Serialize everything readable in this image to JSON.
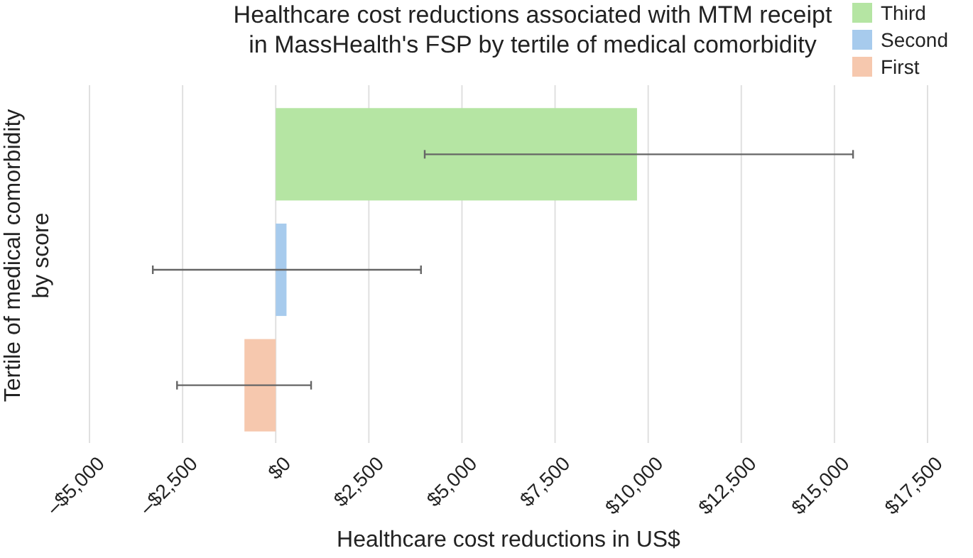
{
  "chart_data": {
    "type": "bar",
    "orientation": "horizontal",
    "title": "Healthcare cost reductions associated with MTM receipt\nin MassHealth's FSP by tertile of medical comorbidity",
    "xlabel": "Healthcare cost reductions in US$",
    "ylabel": "Tertile of medical comorbidity\nby score",
    "categories": [
      null,
      null,
      null
    ],
    "series": [
      {
        "name": "Third",
        "color": "#b5e5a3",
        "values": [
          9700,
          null,
          null
        ],
        "errors": [
          [
            4000,
            15500
          ],
          null,
          null
        ]
      },
      {
        "name": "Second",
        "color": "#a7cbed",
        "values": [
          null,
          290,
          null
        ],
        "errors": [
          null,
          [
            -3300,
            3900
          ],
          null
        ]
      },
      {
        "name": "First",
        "color": "#f6c8ae",
        "values": [
          null,
          null,
          -840
        ],
        "errors": [
          null,
          null,
          [
            -2650,
            950
          ]
        ]
      }
    ],
    "xlim": [
      -5000,
      17500
    ],
    "xticks": [
      {
        "value": -5000,
        "label": "–$5,000"
      },
      {
        "value": -2500,
        "label": "–$2,500"
      },
      {
        "value": 0,
        "label": "$0"
      },
      {
        "value": 2500,
        "label": "$2,500"
      },
      {
        "value": 5000,
        "label": "$5,000"
      },
      {
        "value": 7500,
        "label": "$7,500"
      },
      {
        "value": 10000,
        "label": "$10,000"
      },
      {
        "value": 12500,
        "label": "$12,500"
      },
      {
        "value": 15000,
        "label": "$15,000"
      },
      {
        "value": 17500,
        "label": "$17,500"
      }
    ],
    "grid": "x",
    "legend": "top right"
  }
}
